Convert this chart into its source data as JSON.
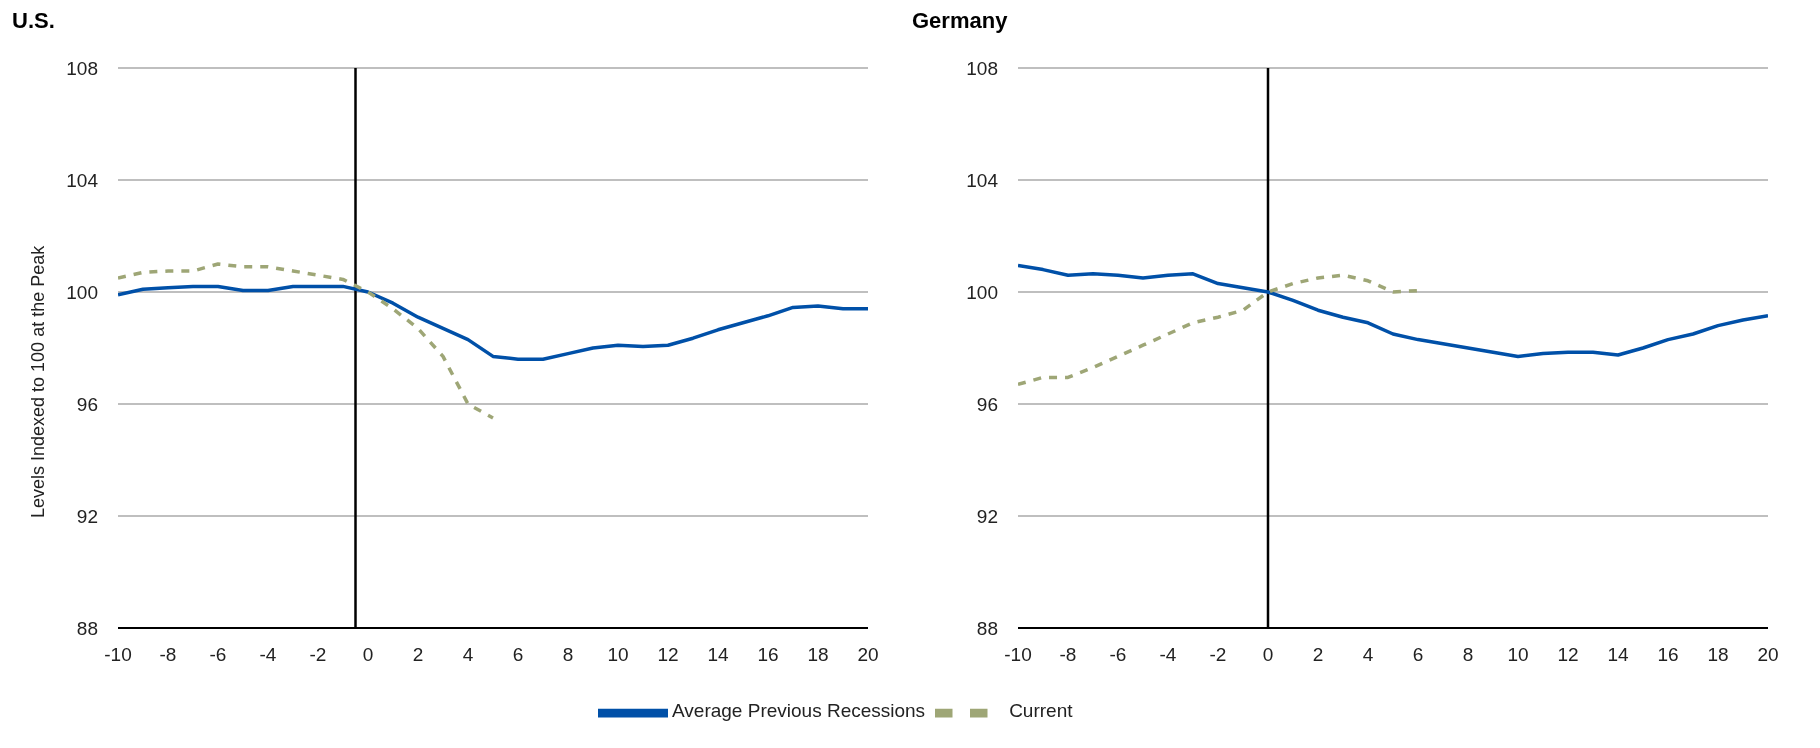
{
  "chart_data": [
    {
      "type": "line",
      "title": "U.S.",
      "ylabel": "Levels Indexed to 100 at the Peak",
      "x": [
        -10,
        -9,
        -8,
        -7,
        -6,
        -5,
        -4,
        -3,
        -2,
        -1,
        0,
        1,
        2,
        3,
        4,
        5,
        6,
        7,
        8,
        9,
        10,
        11,
        12,
        13,
        14,
        15,
        16,
        17,
        18,
        19,
        20
      ],
      "xlim": [
        -10,
        20
      ],
      "xticks": [
        -10,
        -8,
        -6,
        -4,
        -2,
        0,
        2,
        4,
        6,
        8,
        10,
        12,
        14,
        16,
        18,
        20
      ],
      "ylim": [
        88,
        108
      ],
      "yticks": [
        88,
        92,
        96,
        100,
        104,
        108
      ],
      "grid": "y",
      "legend": "bottom",
      "ref_lines": [
        {
          "axis": "x",
          "value": -0.5,
          "color": "#000000"
        }
      ],
      "series": [
        {
          "name": "Average Previous Recessions",
          "color": "#0050a8",
          "line_style": "solid",
          "values": [
            99.9,
            100.1,
            100.15,
            100.2,
            100.2,
            100.05,
            100.05,
            100.2,
            100.2,
            100.2,
            100,
            99.6,
            99.1,
            98.7,
            98.3,
            97.7,
            97.6,
            97.6,
            97.8,
            98,
            98.1,
            98.05,
            98.1,
            98.35,
            98.65,
            98.9,
            99.15,
            99.45,
            99.5,
            99.4,
            99.4
          ]
        },
        {
          "name": "Current",
          "color": "#9ea676",
          "line_style": "dashed",
          "values": [
            100.5,
            100.7,
            100.75,
            100.75,
            101,
            100.9,
            100.9,
            100.75,
            100.6,
            100.45,
            100,
            99.4,
            98.7,
            97.7,
            96,
            95.5,
            null,
            null,
            null,
            null,
            null,
            null,
            null,
            null,
            null,
            null,
            null,
            null,
            null,
            null,
            null
          ]
        }
      ]
    },
    {
      "type": "line",
      "title": "Germany",
      "x": [
        -10,
        -9,
        -8,
        -7,
        -6,
        -5,
        -4,
        -3,
        -2,
        -1,
        0,
        1,
        2,
        3,
        4,
        5,
        6,
        7,
        8,
        9,
        10,
        11,
        12,
        13,
        14,
        15,
        16,
        17,
        18,
        19,
        20
      ],
      "xlim": [
        -10,
        20
      ],
      "xticks": [
        -10,
        -8,
        -6,
        -4,
        -2,
        0,
        2,
        4,
        6,
        8,
        10,
        12,
        14,
        16,
        18,
        20
      ],
      "ylim": [
        88,
        108
      ],
      "yticks": [
        88,
        92,
        96,
        100,
        104,
        108
      ],
      "grid": "y",
      "ref_lines": [
        {
          "axis": "x",
          "value": 0,
          "color": "#000000"
        }
      ],
      "series": [
        {
          "color": "#0050a8",
          "line_style": "solid",
          "values": [
            100.95,
            100.8,
            100.6,
            100.65,
            100.6,
            100.5,
            100.6,
            100.65,
            100.3,
            100.15,
            100,
            99.7,
            99.35,
            99.1,
            98.9,
            98.5,
            98.3,
            98.15,
            98,
            97.85,
            97.7,
            97.8,
            97.85,
            97.85,
            97.75,
            98,
            98.3,
            98.5,
            98.8,
            99,
            99.15
          ]
        },
        {
          "color": "#9ea676",
          "line_style": "dashed",
          "values": [
            96.7,
            96.95,
            96.95,
            97.3,
            97.7,
            98.1,
            98.5,
            98.9,
            99.1,
            99.35,
            100,
            100.3,
            100.5,
            100.6,
            100.4,
            100,
            100.05,
            null,
            null,
            null,
            null,
            null,
            null,
            null,
            null,
            null,
            null,
            null,
            null,
            null,
            null
          ]
        }
      ]
    }
  ]
}
